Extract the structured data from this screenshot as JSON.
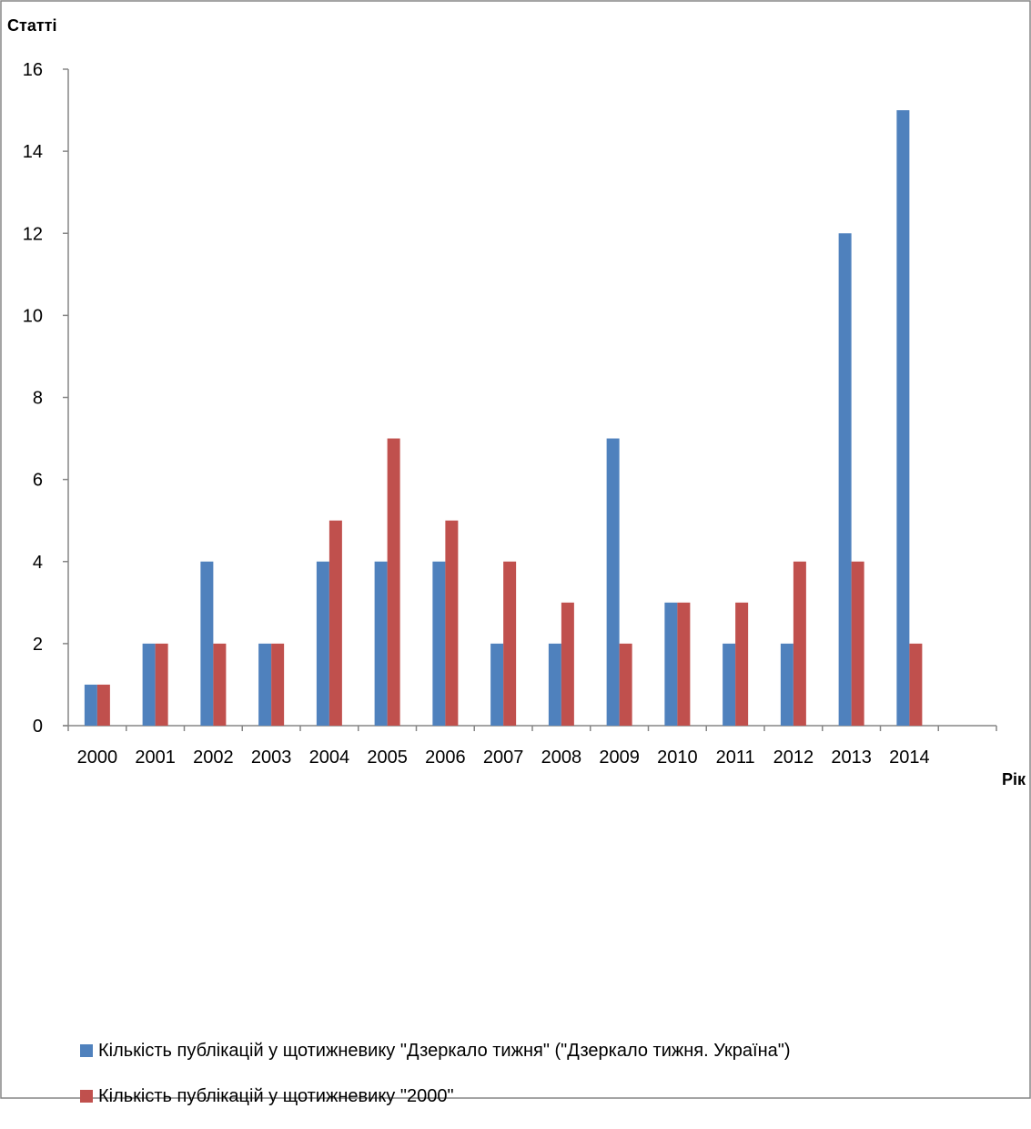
{
  "chart_data": {
    "type": "bar",
    "ylabel": "Статті",
    "xlabel": "Рік",
    "ylim": [
      0,
      16
    ],
    "yticks": [
      0,
      2,
      4,
      6,
      8,
      10,
      12,
      14,
      16
    ],
    "categories": [
      "2000",
      "2001",
      "2002",
      "2003",
      "2004",
      "2005",
      "2006",
      "2007",
      "2008",
      "2009",
      "2010",
      "2011",
      "2012",
      "2013",
      "2014"
    ],
    "series": [
      {
        "name": "Кількість публікацій у щотижневику \"Дзеркало тижня\" (\"Дзеркало тижня. Україна\")",
        "color": "#4f81bd",
        "values": [
          1,
          2,
          4,
          2,
          4,
          4,
          4,
          2,
          2,
          7,
          3,
          2,
          2,
          12,
          15
        ]
      },
      {
        "name": "Кількість публікацій у щотижневику \"2000\"",
        "color": "#c0504d",
        "values": [
          1,
          2,
          2,
          2,
          5,
          7,
          5,
          4,
          3,
          2,
          3,
          3,
          4,
          4,
          2
        ]
      }
    ],
    "grid": false,
    "legend_position": "bottom-left"
  }
}
